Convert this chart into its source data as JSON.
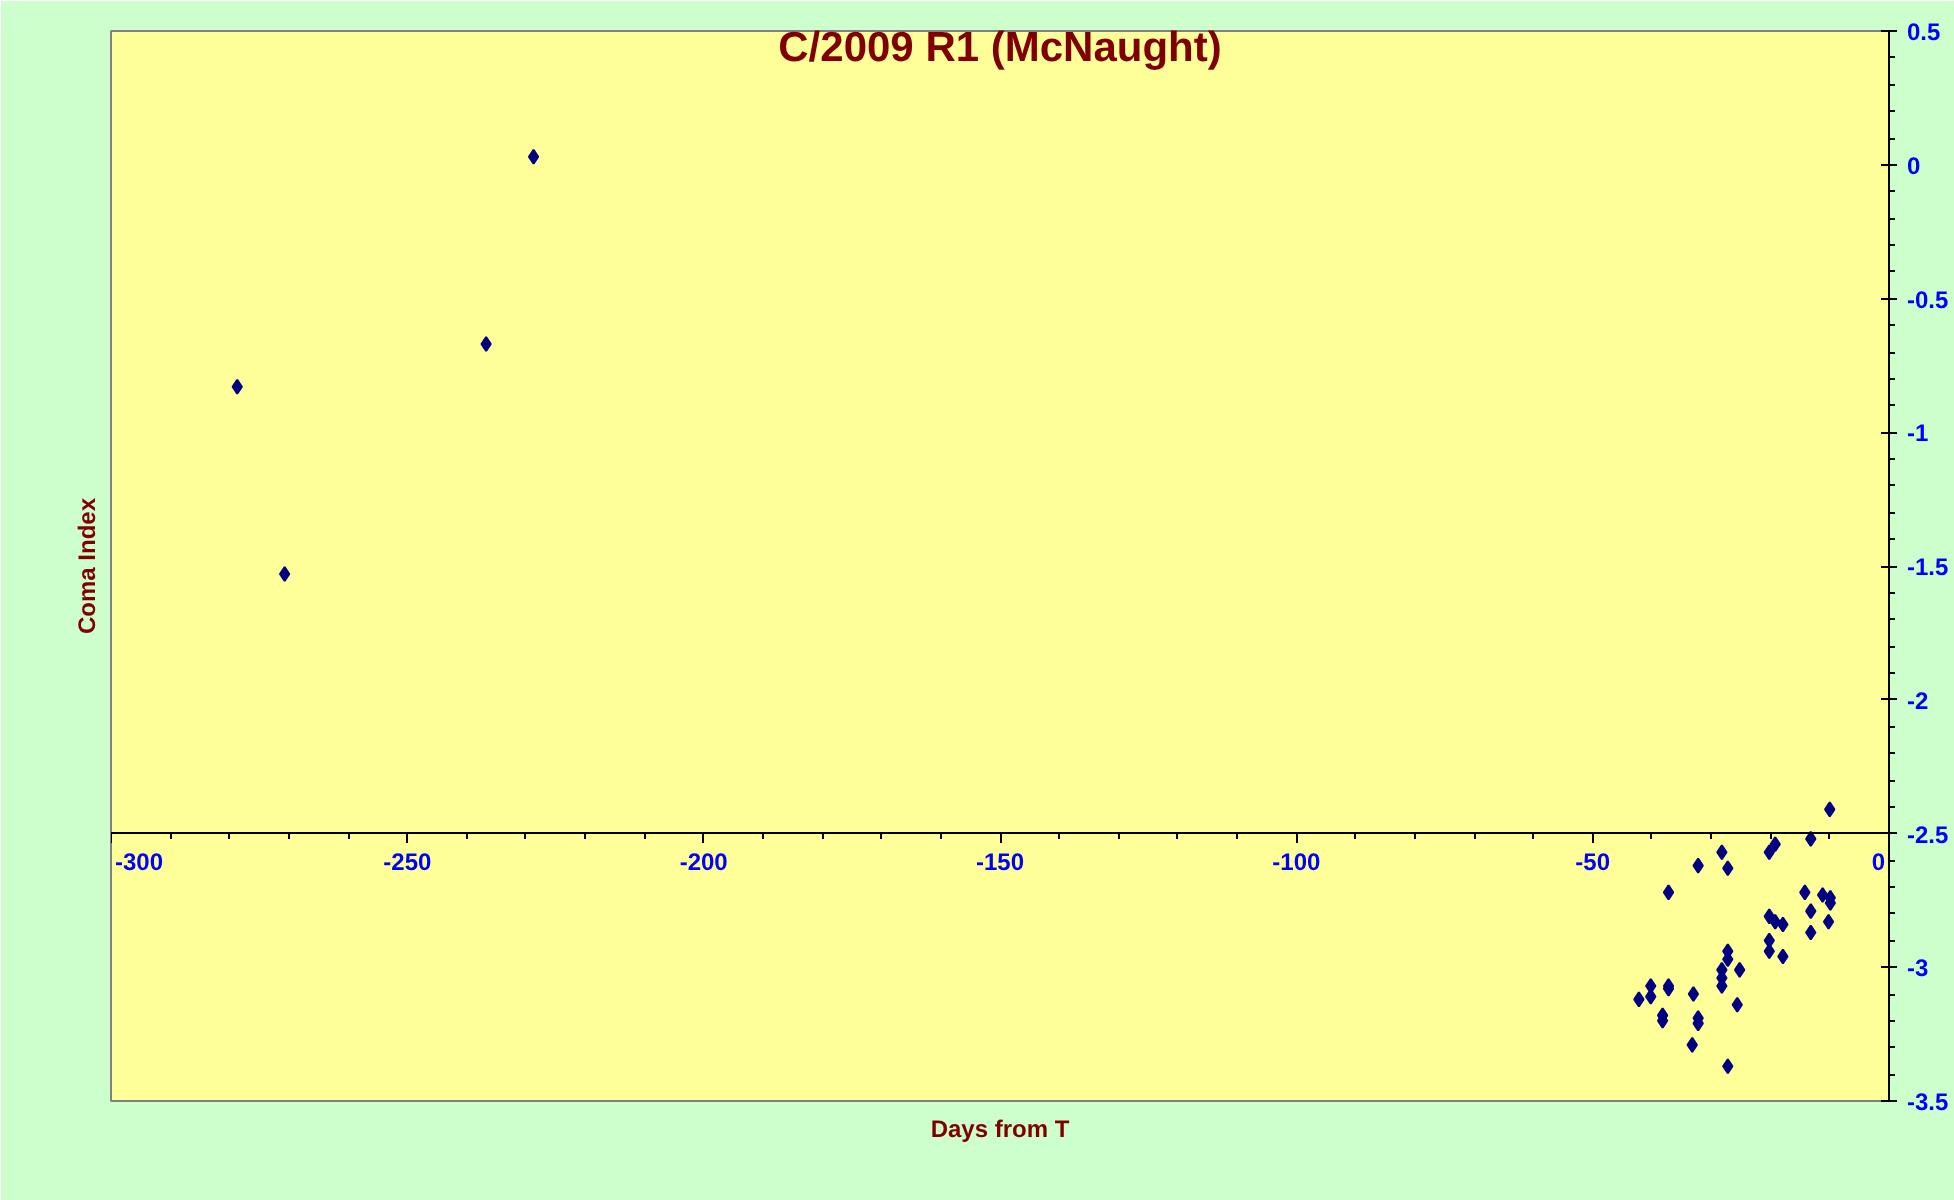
{
  "chart_data": {
    "type": "scatter",
    "title": "C/2009 R1 (McNaught)",
    "xlabel": "Days from T",
    "ylabel": "Coma Index",
    "xlim": [
      -300,
      0
    ],
    "ylim": [
      -3.5,
      0.5
    ],
    "xticks": [
      -300,
      -250,
      -200,
      -150,
      -100,
      -50,
      0
    ],
    "yticks": [
      -3.5,
      -3,
      -2.5,
      -2,
      -1.5,
      -1,
      -0.5,
      0,
      0.5
    ],
    "grid": false,
    "marker": "diamond",
    "series": [
      {
        "color": "#000080",
        "x": [
          -278.7,
          -270.7,
          -236.7,
          -228.7,
          -10,
          -28.2,
          -32.2,
          -27.2,
          -20.2,
          -19.2,
          -13.2,
          -37.2,
          -14.2,
          -11.2,
          -9.9,
          -9.9,
          -13.2,
          -10.2,
          -13.2,
          -20.2,
          -19.2,
          -17.9,
          -20.2,
          -20.2,
          -17.9,
          -27.2,
          -27.2,
          -28.2,
          -25.2,
          -28.2,
          -28.2,
          -25.6,
          -32.2,
          -32.2,
          -33,
          -33.2,
          -27.2,
          -37.2,
          -37.2,
          -38.2,
          -38.2,
          -40.2,
          -40.2,
          -42.2
        ],
        "values": [
          -0.83,
          -1.53,
          -0.67,
          0.03,
          -2.41,
          -2.57,
          -2.62,
          -2.63,
          -2.57,
          -2.54,
          -2.52,
          -2.72,
          -2.72,
          -2.73,
          -2.74,
          -2.76,
          -2.79,
          -2.83,
          -2.87,
          -2.81,
          -2.83,
          -2.84,
          -2.9,
          -2.94,
          -2.96,
          -2.94,
          -2.97,
          -3.01,
          -3.01,
          -3.04,
          -3.07,
          -3.14,
          -3.19,
          -3.21,
          -3.1,
          -3.29,
          -3.37,
          -3.07,
          -3.08,
          -3.18,
          -3.2,
          -3.07,
          -3.11,
          -3.12
        ]
      }
    ]
  }
}
